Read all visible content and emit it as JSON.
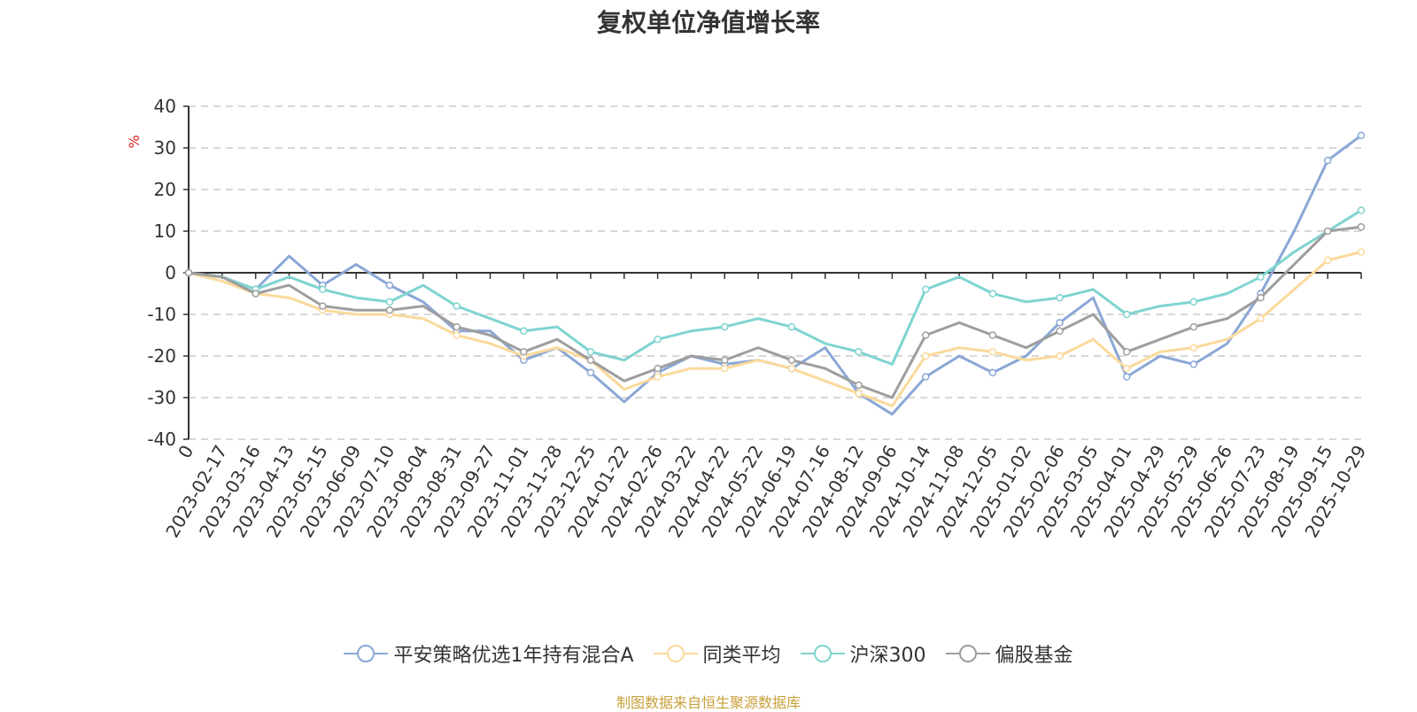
{
  "chart_data": {
    "type": "line",
    "title": "复权单位净值增长率",
    "ylabel": "%",
    "ylim": [
      -40,
      40
    ],
    "yticks": [
      40,
      30,
      20,
      10,
      0,
      -10,
      -20,
      -30,
      -40
    ],
    "grid": true,
    "legend_position": "bottom",
    "x": [
      "0",
      "2023-02-17",
      "2023-03-16",
      "2023-04-13",
      "2023-05-15",
      "2023-06-09",
      "2023-07-10",
      "2023-08-04",
      "2023-08-31",
      "2023-09-27",
      "2023-11-01",
      "2023-11-28",
      "2023-12-25",
      "2024-01-22",
      "2024-02-26",
      "2024-03-22",
      "2024-04-22",
      "2024-05-22",
      "2024-06-19",
      "2024-07-16",
      "2024-08-12",
      "2024-09-06",
      "2024-10-14",
      "2024-11-08",
      "2024-12-05",
      "2025-01-02",
      "2025-02-06",
      "2025-03-05",
      "2025-04-01",
      "2025-04-29",
      "2025-05-29",
      "2025-06-26",
      "2025-07-23",
      "2025-08-19",
      "2025-09-15",
      "2025-10-29"
    ],
    "series": [
      {
        "name": "平安策略优选1年持有混合A",
        "color": "#8aa7d6",
        "values": [
          0,
          -1,
          -4,
          4,
          -3,
          2,
          -3,
          -7,
          -14,
          -14,
          -21,
          -18,
          -24,
          -31,
          -24,
          -20,
          -22,
          -21,
          -23,
          -18,
          -29,
          -34,
          -25,
          -20,
          -24,
          -20,
          -12,
          -6,
          -25,
          -20,
          -22,
          -17,
          -5,
          10,
          27,
          33
        ]
      },
      {
        "name": "同类平均",
        "color": "#fbd99b",
        "values": [
          0,
          -2,
          -5,
          -6,
          -9,
          -10,
          -10,
          -11,
          -15,
          -17,
          -20,
          -18,
          -21,
          -28,
          -25,
          -23,
          -23,
          -21,
          -23,
          -26,
          -29,
          -32,
          -20,
          -18,
          -19,
          -21,
          -20,
          -16,
          -23,
          -19,
          -18,
          -16,
          -11,
          -4,
          3,
          5
        ]
      },
      {
        "name": "沪深300",
        "color": "#7fd4d0",
        "values": [
          0,
          -1,
          -4,
          -1,
          -4,
          -6,
          -7,
          -3,
          -8,
          -11,
          -14,
          -13,
          -19,
          -21,
          -16,
          -14,
          -13,
          -11,
          -13,
          -17,
          -19,
          -22,
          -4,
          -1,
          -5,
          -7,
          -6,
          -4,
          -10,
          -8,
          -7,
          -5,
          -1,
          5,
          10,
          15
        ]
      },
      {
        "name": "偏股基金",
        "color": "#9e9e9e",
        "values": [
          0,
          -1,
          -5,
          -3,
          -8,
          -9,
          -9,
          -8,
          -13,
          -15,
          -19,
          -16,
          -21,
          -26,
          -23,
          -20,
          -21,
          -18,
          -21,
          -23,
          -27,
          -30,
          -15,
          -12,
          -15,
          -18,
          -14,
          -10,
          -19,
          -16,
          -13,
          -11,
          -6,
          2,
          10,
          11
        ]
      }
    ]
  },
  "footer": "制图数据来自恒生聚源数据库"
}
